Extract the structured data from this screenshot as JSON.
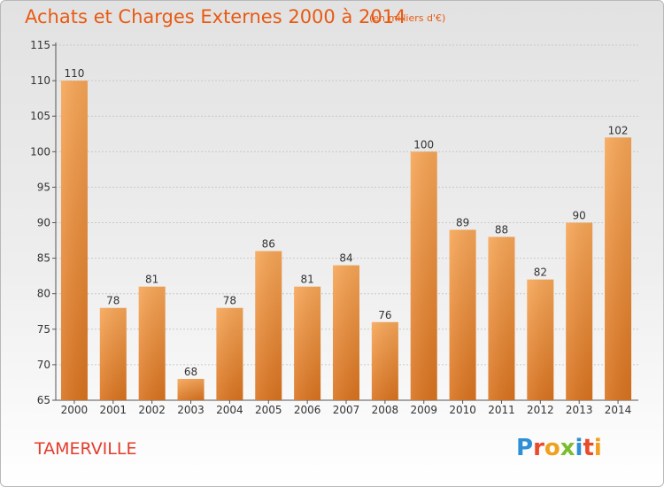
{
  "title": "Achats et Charges Externes 2000 à 2014",
  "subtitle": "(en milliers d'€)",
  "commune": "TAMERVILLE",
  "logo": {
    "letters": [
      "P",
      "r",
      "o",
      "x",
      "i",
      "t",
      "i"
    ],
    "colors": [
      "#2f8fd6",
      "#e94b2a",
      "#f0a01c",
      "#7abd2f",
      "#2f8fd6",
      "#e94b2a",
      "#f0a01c"
    ]
  },
  "chart_data": {
    "type": "bar",
    "categories": [
      "2000",
      "2001",
      "2002",
      "2003",
      "2004",
      "2005",
      "2006",
      "2007",
      "2008",
      "2009",
      "2010",
      "2011",
      "2012",
      "2013",
      "2014"
    ],
    "values": [
      110,
      78,
      81,
      68,
      78,
      86,
      81,
      84,
      76,
      100,
      89,
      88,
      82,
      90,
      102
    ],
    "ylim": [
      65,
      115
    ],
    "yticks": [
      65,
      70,
      75,
      80,
      85,
      90,
      95,
      100,
      105,
      110,
      115
    ],
    "grid": true,
    "bar_color": "#f0913a"
  }
}
